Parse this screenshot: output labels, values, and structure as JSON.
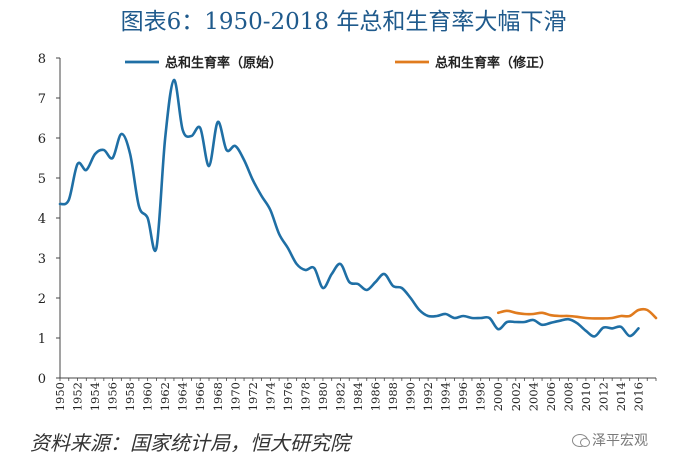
{
  "title": "图表6：1950-2018 年总和生育率大幅下滑",
  "source_note": "资料来源：国家统计局，恒大研究院",
  "watermark": "泽平宏观",
  "colors": {
    "original": "#1f6fa5",
    "revised": "#e07b1e",
    "title": "#1f5a8c"
  },
  "chart_data": {
    "type": "line",
    "title": "图表6：1950-2018 年总和生育率大幅下滑",
    "xlabel": "",
    "ylabel": "",
    "ylim": [
      0,
      8
    ],
    "yticks": [
      0,
      1,
      2,
      3,
      4,
      5,
      6,
      7,
      8
    ],
    "xlim": [
      1950,
      2018
    ],
    "xtick_labels": [
      1950,
      1952,
      1954,
      1956,
      1958,
      1960,
      1962,
      1964,
      1966,
      1968,
      1970,
      1972,
      1974,
      1976,
      1978,
      1980,
      1982,
      1984,
      1986,
      1988,
      1990,
      1992,
      1994,
      1996,
      1998,
      2000,
      2002,
      2004,
      2006,
      2008,
      2010,
      2012,
      2014,
      2016
    ],
    "grid": false,
    "legend": "top",
    "series": [
      {
        "name": "总和生育率（原始）",
        "color": "#1f6fa5",
        "x": [
          1950,
          1951,
          1952,
          1953,
          1954,
          1955,
          1956,
          1957,
          1958,
          1959,
          1960,
          1961,
          1962,
          1963,
          1964,
          1965,
          1966,
          1967,
          1968,
          1969,
          1970,
          1971,
          1972,
          1973,
          1974,
          1975,
          1976,
          1977,
          1978,
          1979,
          1980,
          1981,
          1982,
          1983,
          1984,
          1985,
          1986,
          1987,
          1988,
          1989,
          1990,
          1991,
          1992,
          1993,
          1994,
          1995,
          1996,
          1997,
          1998,
          1999,
          2000,
          2001,
          2002,
          2003,
          2004,
          2005,
          2006,
          2007,
          2008,
          2009,
          2010,
          2011,
          2012,
          2013,
          2014,
          2015,
          2016
        ],
        "values": [
          4.35,
          4.45,
          5.35,
          5.2,
          5.6,
          5.7,
          5.5,
          6.1,
          5.6,
          4.3,
          4.0,
          3.25,
          6.0,
          7.45,
          6.2,
          6.05,
          6.25,
          5.3,
          6.4,
          5.7,
          5.8,
          5.45,
          4.95,
          4.55,
          4.2,
          3.6,
          3.25,
          2.85,
          2.7,
          2.75,
          2.25,
          2.6,
          2.85,
          2.4,
          2.35,
          2.2,
          2.4,
          2.6,
          2.3,
          2.25,
          2.0,
          1.7,
          1.55,
          1.55,
          1.6,
          1.5,
          1.55,
          1.5,
          1.5,
          1.5,
          1.22,
          1.4,
          1.4,
          1.4,
          1.45,
          1.33,
          1.38,
          1.43,
          1.47,
          1.37,
          1.18,
          1.04,
          1.26,
          1.24,
          1.28,
          1.05,
          1.24
        ]
      },
      {
        "name": "总和生育率（修正）",
        "color": "#e07b1e",
        "x": [
          2000,
          2001,
          2002,
          2003,
          2004,
          2005,
          2006,
          2007,
          2008,
          2009,
          2010,
          2011,
          2012,
          2013,
          2014,
          2015,
          2016,
          2017,
          2018
        ],
        "values": [
          1.63,
          1.68,
          1.63,
          1.6,
          1.6,
          1.63,
          1.57,
          1.55,
          1.55,
          1.53,
          1.5,
          1.49,
          1.49,
          1.5,
          1.55,
          1.55,
          1.7,
          1.7,
          1.5
        ]
      }
    ]
  }
}
